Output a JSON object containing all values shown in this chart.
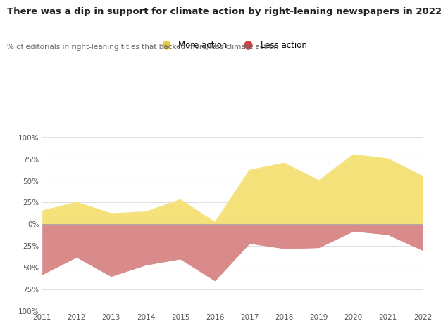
{
  "title": "There was a dip in support for climate action by right-leaning newspapers in 2022",
  "subtitle": "% of editorials in right-leaning titles that backed more/less climate action",
  "years": [
    2011,
    2012,
    2013,
    2014,
    2015,
    2016,
    2017,
    2018,
    2019,
    2020,
    2021,
    2022
  ],
  "more_action": [
    15,
    25,
    12,
    14,
    28,
    2,
    62,
    70,
    50,
    80,
    75,
    55
  ],
  "less_action": [
    -58,
    -38,
    -60,
    -47,
    -40,
    -65,
    -22,
    -28,
    -27,
    -8,
    -12,
    -30
  ],
  "color_more": "#F5E17A",
  "color_less": "#D98B8B",
  "color_more_marker": "#E8C840",
  "color_less_marker": "#CC4444",
  "color_zero_line": "#aaaaaa",
  "color_grid": "#e0e0e0",
  "color_100_line": "#ccddee",
  "background_color": "#ffffff",
  "legend_more": "More action",
  "legend_less": "Less action",
  "ylim_min": -100,
  "ylim_max": 100
}
